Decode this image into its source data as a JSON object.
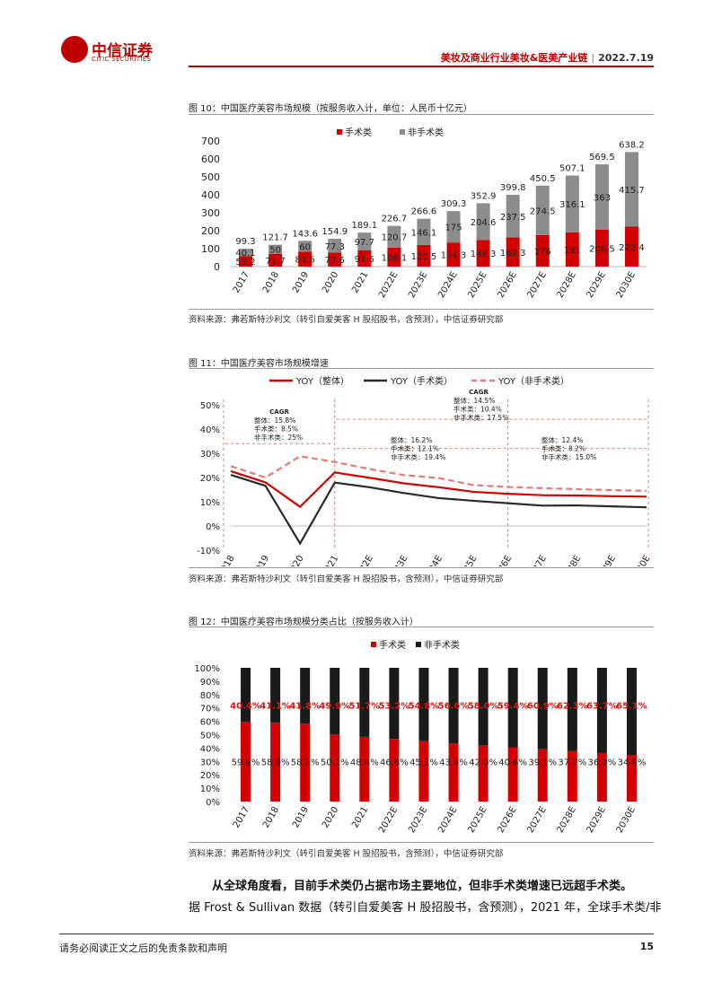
{
  "header": {
    "logo_cn": "中信证券",
    "logo_en": "CITIC SECURITIES",
    "title": "美妆及商业行业美妆&医美产业链",
    "date": "2022.7.19"
  },
  "colors": {
    "red": "#d40000",
    "gray": "#8c8c8c",
    "black": "#2a2a2a",
    "pink": "#e87a7a"
  },
  "fig10": {
    "title": "图 10：中国医疗美容市场规模（按服务收入计，单位：人民币十亿元）",
    "source": "资料来源：弗若斯特沙利文（转引自爱美客 H 股招股书，含预测），中信证券研究部"
  },
  "fig11": {
    "title": "图 11：中国医疗美容市场规模增速",
    "source": "资料来源：弗若斯特沙利文（转引自爱美客 H 股招股书，含预测），中信证券研究部",
    "cagr_title": "CAGR",
    "cagr_left": [
      "整体：15.8%",
      "手术类：8.5%",
      "非手术类：25%"
    ],
    "cagr_top": [
      "整体：14.5%",
      "手术类：10.4%",
      "非手术类：17.5%"
    ],
    "cagr_mid": [
      "整体：16.2%",
      "手术类：12.1%",
      "非手术类：19.4%"
    ],
    "cagr_right": [
      "整体：12.4%",
      "手术类：8.2%",
      "非手术类：15.0%"
    ]
  },
  "fig12": {
    "title": "图 12：中国医疗美容市场规模分类占比（按服务收入计）",
    "source": "资料来源：弗若斯特沙利文（转引自爱美客 H 股招股书，含预测），中信证券研究部"
  },
  "body": {
    "bold": "从全球角度看，目前手术类仍占据市场主要地位，但非手术类增速已远超手术类。",
    "text": "据 Frost & Sullivan 数据（转引自爱美客 H 股招股书，含预测），2021 年，全球手术类/非"
  },
  "footer": {
    "disclaimer": "请务必阅读正文之后的免责条款和声明",
    "page": "15"
  },
  "chart_data": [
    {
      "type": "bar",
      "stacked": true,
      "categories": [
        "2017",
        "2018",
        "2019",
        "2020",
        "2021",
        "2022E",
        "2023E",
        "2024E",
        "2025E",
        "2026E",
        "2027E",
        "2028E",
        "2029E",
        "2030E"
      ],
      "series": [
        {
          "name": "手术类",
          "color": "#d40000",
          "values": [
            59.2,
            71.7,
            83.6,
            77.6,
            91.5,
            106.1,
            120.5,
            134.3,
            148.3,
            162.3,
            176,
            191,
            206.5,
            222.4
          ]
        },
        {
          "name": "非手术类",
          "color": "#8c8c8c",
          "values": [
            40.1,
            50,
            60,
            77.3,
            97.7,
            120.7,
            146.1,
            175,
            204.6,
            237.5,
            274.5,
            316.1,
            363,
            415.7
          ]
        }
      ],
      "totals": [
        99.3,
        121.7,
        143.6,
        154.9,
        189.1,
        226.7,
        266.6,
        309.3,
        352.9,
        399.8,
        450.5,
        507.1,
        569.5,
        638.2
      ],
      "ylim": [
        0,
        700
      ],
      "yticks": [
        0,
        100,
        200,
        300,
        400,
        500,
        600,
        700
      ],
      "legend": "top"
    },
    {
      "type": "line",
      "categories": [
        "2018",
        "2019",
        "2020",
        "2021",
        "2022E",
        "2023E",
        "2024E",
        "2025E",
        "2026E",
        "2027E",
        "2028E",
        "2029E",
        "2030E"
      ],
      "series": [
        {
          "name": "YOY（整体）",
          "color": "#d40000",
          "style": "solid",
          "values": [
            22.6,
            18.0,
            7.9,
            22.1,
            19.9,
            17.6,
            16.0,
            14.1,
            13.3,
            12.7,
            12.6,
            12.3,
            12.1
          ]
        },
        {
          "name": "YOY（手术类）",
          "color": "#2a2a2a",
          "style": "solid",
          "values": [
            21.1,
            16.6,
            -7.2,
            17.9,
            16.0,
            13.6,
            11.5,
            10.4,
            9.4,
            8.4,
            8.5,
            8.1,
            7.7
          ]
        },
        {
          "name": "YOY（非手术类）",
          "color": "#e87a7a",
          "style": "dashed",
          "values": [
            24.7,
            20.0,
            28.8,
            26.4,
            23.5,
            21.0,
            19.8,
            16.9,
            16.1,
            15.6,
            15.2,
            14.8,
            14.5
          ]
        }
      ],
      "ylim": [
        -10,
        50
      ],
      "yticks": [
        "-10%",
        "0%",
        "10%",
        "20%",
        "30%",
        "40%",
        "50%"
      ],
      "legend": "top"
    },
    {
      "type": "bar",
      "stacked": true,
      "percent": true,
      "categories": [
        "2017",
        "2018",
        "2019",
        "2020",
        "2021",
        "2022E",
        "2023E",
        "2024E",
        "2025E",
        "2026E",
        "2027E",
        "2028E",
        "2029E",
        "2030E"
      ],
      "series": [
        {
          "name": "手术类",
          "color": "#d40000",
          "values": [
            59.6,
            58.9,
            58.2,
            50.1,
            48.4,
            46.8,
            45.2,
            43.4,
            42.0,
            40.6,
            39.1,
            37.7,
            36.3,
            34.9
          ]
        },
        {
          "name": "非手术类",
          "color": "#1a1a1a",
          "values": [
            40.4,
            41.1,
            41.8,
            49.9,
            51.7,
            53.2,
            54.8,
            56.6,
            58.0,
            59.4,
            60.9,
            62.3,
            63.7,
            65.1
          ]
        }
      ],
      "ylim": [
        0,
        100
      ],
      "yticks": [
        "0%",
        "10%",
        "20%",
        "30%",
        "40%",
        "50%",
        "60%",
        "70%",
        "80%",
        "90%",
        "100%"
      ],
      "legend": "top"
    }
  ]
}
